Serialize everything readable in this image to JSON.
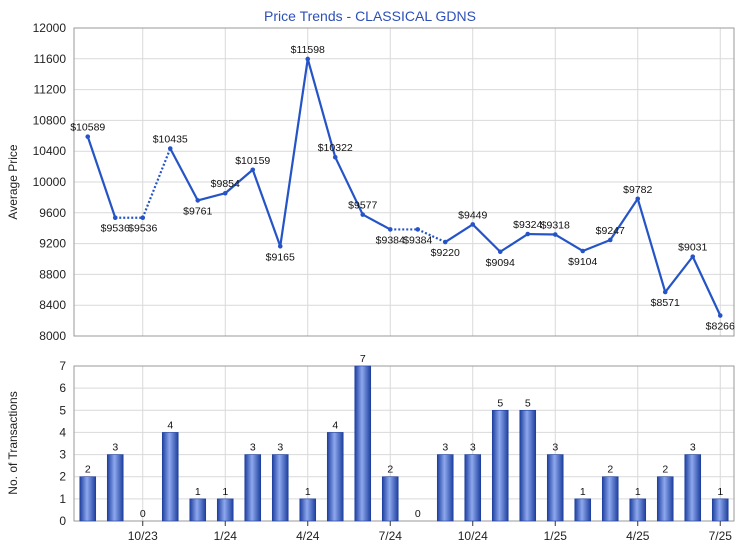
{
  "chart_data": [
    {
      "type": "line",
      "title": "Price Trends - CLASSICAL GDNS",
      "ylabel": "Average Price",
      "ylim": [
        8000,
        12000
      ],
      "yticks": [
        8000,
        8400,
        8800,
        9200,
        9600,
        10000,
        10400,
        10800,
        11200,
        11600,
        12000
      ],
      "x_tick_labels": [
        "10/23",
        "1/24",
        "4/24",
        "7/24",
        "10/24",
        "1/25",
        "4/25",
        "7/25"
      ],
      "grid": true,
      "line_color": "#2554c7",
      "series": [
        {
          "values": [
            10589,
            9536,
            9536,
            10435,
            9761,
            9854,
            10159,
            9165,
            11598,
            10322,
            9577,
            9384,
            9384,
            9220,
            9449,
            9094,
            9324,
            9318,
            9104,
            9247,
            9782,
            8571,
            9031,
            8266
          ],
          "labels": [
            "$10589",
            "$9536",
            "$9536",
            "$10435",
            "$9761",
            "$9854",
            "$10159",
            "$9165",
            "$11598",
            "$10322",
            "$9577",
            "$9384",
            "$9384",
            "$9220",
            "$9449",
            "$9094",
            "$9324",
            "$9318",
            "$9104",
            "$9247",
            "$9782",
            "$8571",
            "$9031",
            "$8266"
          ],
          "interpolated": [
            false,
            false,
            true,
            false,
            false,
            false,
            false,
            false,
            false,
            false,
            false,
            false,
            true,
            false,
            false,
            false,
            false,
            false,
            false,
            false,
            false,
            false,
            false,
            false
          ]
        }
      ]
    },
    {
      "type": "bar",
      "ylabel": "No. of Transactions",
      "ylim": [
        0,
        7
      ],
      "yticks": [
        0,
        1,
        2,
        3,
        4,
        5,
        6,
        7
      ],
      "x_tick_labels": [
        "10/23",
        "1/24",
        "4/24",
        "7/24",
        "10/24",
        "1/25",
        "4/25",
        "7/25"
      ],
      "grid": true,
      "bar_color": "#3a62c9",
      "values": [
        2,
        3,
        0,
        4,
        1,
        1,
        3,
        3,
        1,
        4,
        7,
        2,
        0,
        3,
        3,
        5,
        5,
        3,
        1,
        2,
        1,
        2,
        3,
        1
      ]
    }
  ]
}
